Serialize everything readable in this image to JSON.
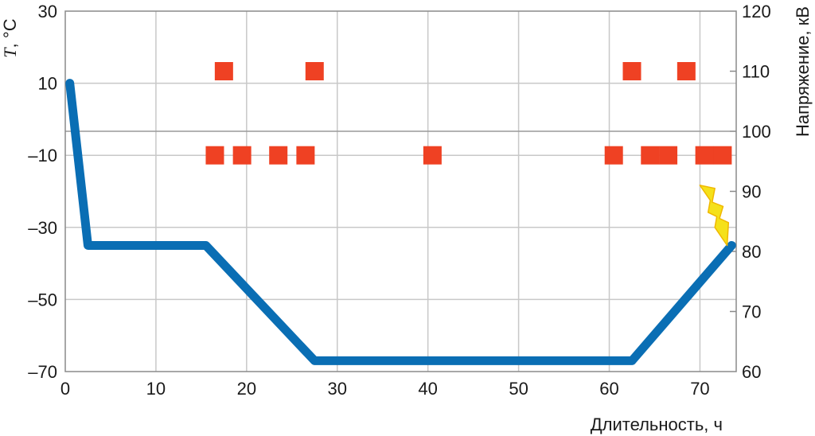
{
  "chart_data": {
    "type": "line",
    "x_axis": {
      "label": "Длительность, ч",
      "range": [
        0,
        74
      ],
      "ticks": [
        0,
        10,
        20,
        30,
        40,
        50,
        60,
        70
      ],
      "tick_labels": [
        "0",
        "10",
        "20",
        "30",
        "40",
        "50",
        "60",
        "70"
      ]
    },
    "y_left_axis": {
      "label_symbol": "T",
      "label_unit": ", °C",
      "range": [
        -70,
        30
      ],
      "ticks": [
        30,
        10,
        -10,
        -30,
        -50,
        -70
      ],
      "tick_labels": [
        "30",
        "10",
        "–10",
        "–30",
        "–50",
        "–70"
      ]
    },
    "y_right_axis": {
      "label": "Напряжение, кВ",
      "range": [
        60,
        120
      ],
      "ticks": [
        120,
        110,
        100,
        90,
        80,
        70,
        60
      ],
      "tick_labels": [
        "120",
        "110",
        "100",
        "90",
        "80",
        "70",
        "60"
      ]
    },
    "grid": true,
    "series": [
      {
        "kind": "line",
        "axis": "left",
        "color": "#0a6eb4",
        "x": [
          0.5,
          2.5,
          15.5,
          27.5,
          62.5,
          73.5
        ],
        "y": [
          10,
          -35,
          -35,
          -67,
          -67,
          -35
        ]
      },
      {
        "kind": "markers",
        "axis": "right",
        "color": "#ef4123",
        "marker": "square",
        "points": [
          [
            17.5,
            110
          ],
          [
            27.5,
            110
          ],
          [
            62.5,
            110
          ],
          [
            68.5,
            110
          ],
          [
            16.5,
            96
          ],
          [
            19.5,
            96
          ],
          [
            23.5,
            96
          ],
          [
            26.5,
            96
          ],
          [
            40.5,
            96
          ],
          [
            60.5,
            96
          ],
          [
            64.5,
            96
          ],
          [
            66.5,
            96
          ],
          [
            70.5,
            96
          ],
          [
            72.5,
            96
          ]
        ]
      }
    ],
    "annotations": [
      {
        "kind": "lightning-icon",
        "color": "#f5e11a",
        "x": [
          70,
          73
        ],
        "y_right": [
          91,
          81
        ]
      }
    ]
  }
}
